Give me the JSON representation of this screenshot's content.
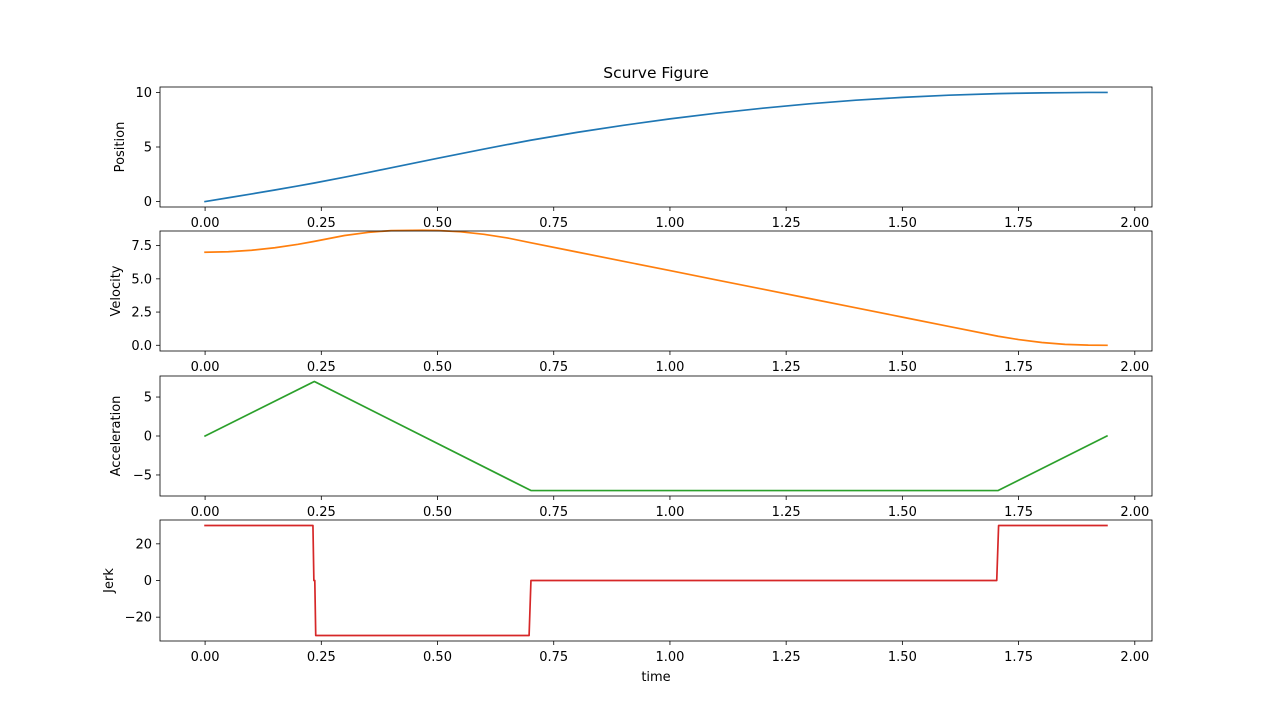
{
  "chart_data": [
    {
      "type": "line",
      "title": "Scurve Figure",
      "xlabel": "",
      "ylabel": "Position",
      "color": "#1f77b4",
      "xlim": [
        -0.097,
        2.037
      ],
      "ylim": [
        -0.5,
        10.5
      ],
      "xticks": [
        0.0,
        0.25,
        0.5,
        0.75,
        1.0,
        1.25,
        1.5,
        1.75,
        2.0
      ],
      "xtick_labels": [
        "0.00",
        "0.25",
        "0.50",
        "0.75",
        "1.00",
        "1.25",
        "1.50",
        "1.75",
        "2.00"
      ],
      "yticks": [
        0,
        5,
        10
      ],
      "ytick_labels": [
        "0",
        "5",
        "10"
      ],
      "grid": false,
      "series": [
        {
          "x": [
            0.0,
            0.05,
            0.1,
            0.15,
            0.2,
            0.235,
            0.3,
            0.35,
            0.4,
            0.45,
            0.5,
            0.55,
            0.6,
            0.65,
            0.7,
            0.8,
            0.9,
            1.0,
            1.1,
            1.2,
            1.3,
            1.4,
            1.5,
            1.6,
            1.706,
            1.75,
            1.8,
            1.85,
            1.9,
            1.94
          ],
          "y": [
            0.0,
            0.35,
            0.7,
            1.06,
            1.43,
            1.7,
            2.23,
            2.66,
            3.09,
            3.53,
            3.96,
            4.39,
            4.81,
            5.22,
            5.62,
            6.34,
            6.99,
            7.58,
            8.1,
            8.56,
            8.96,
            9.29,
            9.55,
            9.75,
            9.89,
            9.93,
            9.96,
            9.98,
            10.0,
            10.0
          ]
        }
      ]
    },
    {
      "type": "line",
      "title": "",
      "xlabel": "",
      "ylabel": "Velocity",
      "color": "#ff7f0e",
      "xlim": [
        -0.097,
        2.037
      ],
      "ylim": [
        -0.43,
        8.6
      ],
      "xticks": [
        0.0,
        0.25,
        0.5,
        0.75,
        1.0,
        1.25,
        1.5,
        1.75,
        2.0
      ],
      "xtick_labels": [
        "0.00",
        "0.25",
        "0.50",
        "0.75",
        "1.00",
        "1.25",
        "1.50",
        "1.75",
        "2.00"
      ],
      "yticks": [
        0.0,
        2.5,
        5.0,
        7.5
      ],
      "ytick_labels": [
        "0.0",
        "2.5",
        "5.0",
        "7.5"
      ],
      "grid": false,
      "series": [
        {
          "x": [
            0.0,
            0.05,
            0.1,
            0.15,
            0.2,
            0.235,
            0.3,
            0.35,
            0.4,
            0.467,
            0.5,
            0.55,
            0.6,
            0.65,
            0.7,
            0.8,
            0.9,
            1.0,
            1.1,
            1.2,
            1.3,
            1.4,
            1.5,
            1.6,
            1.706,
            1.75,
            1.8,
            1.85,
            1.9,
            1.94
          ],
          "y": [
            7.0,
            7.04,
            7.15,
            7.34,
            7.6,
            7.82,
            8.26,
            8.49,
            8.63,
            8.66,
            8.64,
            8.54,
            8.35,
            8.08,
            7.72,
            7.02,
            6.32,
            5.62,
            4.92,
            4.22,
            3.52,
            2.82,
            2.12,
            1.42,
            0.68,
            0.43,
            0.21,
            0.07,
            0.01,
            0.0
          ]
        }
      ]
    },
    {
      "type": "line",
      "title": "",
      "xlabel": "",
      "ylabel": "Acceleration",
      "color": "#2ca02c",
      "xlim": [
        -0.097,
        2.037
      ],
      "ylim": [
        -7.7,
        7.7
      ],
      "xticks": [
        0.0,
        0.25,
        0.5,
        0.75,
        1.0,
        1.25,
        1.5,
        1.75,
        2.0
      ],
      "xtick_labels": [
        "0.00",
        "0.25",
        "0.50",
        "0.75",
        "1.00",
        "1.25",
        "1.50",
        "1.75",
        "2.00"
      ],
      "yticks": [
        -5,
        0,
        5
      ],
      "ytick_labels": [
        "−5",
        "0",
        "5"
      ],
      "grid": false,
      "series": [
        {
          "x": [
            0.0,
            0.235,
            0.701,
            1.706,
            1.94
          ],
          "y": [
            0.0,
            7.0,
            -7.0,
            -7.0,
            0.0
          ]
        }
      ]
    },
    {
      "type": "line",
      "title": "",
      "xlabel": "time",
      "ylabel": "Jerk",
      "color": "#d62728",
      "xlim": [
        -0.097,
        2.037
      ],
      "ylim": [
        -33.0,
        33.0
      ],
      "xticks": [
        0.0,
        0.25,
        0.5,
        0.75,
        1.0,
        1.25,
        1.5,
        1.75,
        2.0
      ],
      "xtick_labels": [
        "0.00",
        "0.25",
        "0.50",
        "0.75",
        "1.00",
        "1.25",
        "1.50",
        "1.75",
        "2.00"
      ],
      "yticks": [
        -20,
        0,
        20
      ],
      "ytick_labels": [
        "−20",
        "0",
        "20"
      ],
      "grid": false,
      "series": [
        {
          "x": [
            0.0,
            0.232,
            0.234,
            0.236,
            0.238,
            0.697,
            0.701,
            1.703,
            1.707,
            1.94
          ],
          "y": [
            30.0,
            30.0,
            0.0,
            0.0,
            -30.0,
            -30.0,
            0.0,
            0.0,
            30.0,
            30.0
          ]
        }
      ]
    }
  ]
}
